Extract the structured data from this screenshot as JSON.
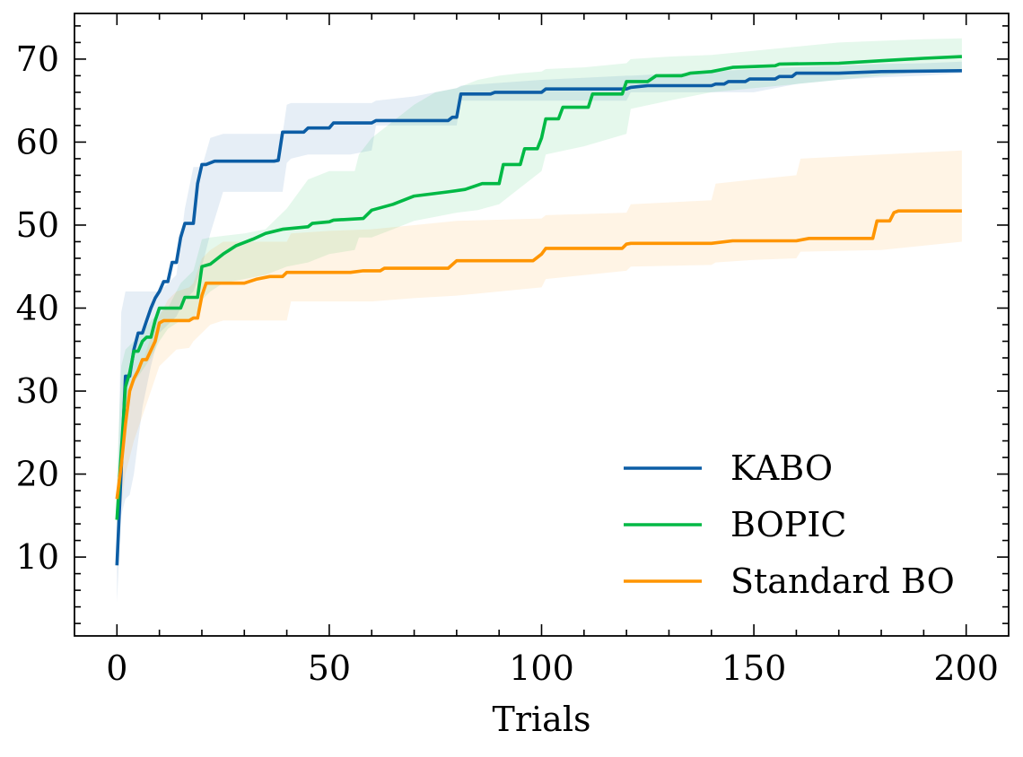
{
  "chart_data": {
    "type": "line",
    "title": "",
    "xlabel": "Trials",
    "ylabel": "",
    "xlim": [
      -10,
      210
    ],
    "ylim": [
      0.5,
      75.5
    ],
    "xticks": [
      0,
      50,
      100,
      150,
      200
    ],
    "yticks": [
      10,
      20,
      30,
      40,
      50,
      60,
      70
    ],
    "xtick_labels": [
      "0",
      "50",
      "100",
      "150",
      "200"
    ],
    "ytick_labels": [
      "10",
      "20",
      "30",
      "40",
      "50",
      "60",
      "70"
    ],
    "grid": false,
    "legend_position": "lower-right",
    "series": [
      {
        "name": "KABO",
        "color": "#0C5DA5",
        "x": [
          0,
          2,
          3,
          4,
          5,
          6,
          7,
          8,
          9,
          10,
          11,
          12,
          13,
          14,
          15,
          16,
          18,
          19,
          20,
          21,
          23,
          25,
          30,
          37,
          38,
          39,
          44,
          45,
          50,
          51,
          60,
          61,
          78,
          79,
          80,
          81,
          88,
          89,
          100,
          101,
          120,
          121,
          125,
          140,
          141,
          143,
          144,
          148,
          149,
          155,
          156,
          159,
          160,
          170,
          180,
          199
        ],
        "y": [
          9,
          31.8,
          31.8,
          35,
          37,
          37,
          38.5,
          40,
          41.2,
          42,
          43.2,
          43.2,
          45.5,
          45.5,
          48.5,
          50.2,
          50.2,
          55,
          57.3,
          57.3,
          57.7,
          57.7,
          57.7,
          57.7,
          57.8,
          61.2,
          61.2,
          61.7,
          61.7,
          62.3,
          62.3,
          62.6,
          62.6,
          63,
          63,
          65.8,
          65.8,
          66,
          66,
          66.4,
          66.4,
          66.6,
          66.8,
          66.8,
          67,
          67,
          67.3,
          67.3,
          67.6,
          67.6,
          67.9,
          67.9,
          68.3,
          68.3,
          68.5,
          68.6
        ]
      },
      {
        "name": "BOPIC",
        "color": "#00B945",
        "x": [
          0,
          2,
          3,
          4,
          5,
          6,
          7,
          8,
          9,
          10,
          11,
          15,
          16,
          19,
          20,
          22,
          25,
          28,
          32,
          35,
          39,
          45,
          46,
          50,
          51,
          58,
          60,
          65,
          70,
          78,
          82,
          86,
          90,
          91,
          95,
          96,
          99,
          100,
          101,
          102,
          104,
          105,
          110,
          111,
          112,
          113,
          119,
          120,
          125,
          127,
          133,
          135,
          140,
          145,
          155,
          156,
          170,
          180,
          190,
          199
        ],
        "y": [
          14.5,
          30.5,
          32.2,
          34.8,
          34.8,
          36,
          36.5,
          36.5,
          38.5,
          40,
          40,
          40,
          41.3,
          41.3,
          45,
          45.3,
          46.5,
          47.5,
          48.3,
          49,
          49.5,
          49.8,
          50.2,
          50.4,
          50.6,
          50.8,
          51.8,
          52.5,
          53.5,
          54,
          54.3,
          55,
          55,
          57.3,
          57.3,
          59.2,
          59.2,
          60.5,
          62.8,
          62.8,
          62.8,
          64.2,
          64.2,
          64.2,
          65.8,
          65.8,
          65.8,
          67.3,
          67.3,
          68,
          68,
          68.3,
          68.5,
          69,
          69.2,
          69.4,
          69.5,
          69.8,
          70.1,
          70.3
        ]
      },
      {
        "name": "Standard BO",
        "color": "#FF9500",
        "x": [
          0,
          1,
          2,
          3,
          4,
          5,
          6,
          7,
          9,
          10,
          11,
          13,
          17,
          18,
          19,
          20,
          21,
          22,
          30,
          33,
          36,
          39,
          40,
          55,
          58,
          62,
          63,
          78,
          80,
          98,
          100,
          101,
          119,
          120,
          121,
          140,
          145,
          160,
          163,
          175,
          178,
          179,
          180,
          182,
          183,
          184,
          199
        ],
        "y": [
          17,
          21,
          26,
          30,
          31.5,
          32.5,
          33.8,
          33.8,
          36,
          38.2,
          38.5,
          38.5,
          38.5,
          38.8,
          38.8,
          41.5,
          43,
          43,
          43,
          43.5,
          43.8,
          43.8,
          44.3,
          44.3,
          44.5,
          44.5,
          44.8,
          44.8,
          45.7,
          45.7,
          46.5,
          47.2,
          47.2,
          47.7,
          47.8,
          47.8,
          48.1,
          48.1,
          48.4,
          48.4,
          48.4,
          50.5,
          50.5,
          50.5,
          51.5,
          51.7,
          51.7
        ]
      }
    ],
    "bands": [
      {
        "series": "KABO",
        "color": "#0C5DA5",
        "x": [
          0,
          1,
          2,
          3,
          4,
          6,
          8,
          10,
          12,
          14,
          16,
          18,
          20,
          22,
          25,
          30,
          35,
          39,
          40,
          41,
          45,
          50,
          55,
          60,
          61,
          70,
          80,
          81,
          100,
          120,
          121,
          140,
          150,
          160,
          170,
          180,
          190,
          199
        ],
        "lower": [
          4.5,
          15,
          17,
          17.5,
          20,
          28,
          33,
          37,
          38,
          39,
          41,
          42,
          45,
          49,
          54,
          54,
          54,
          54,
          57.5,
          58,
          58.5,
          58.5,
          58.5,
          59,
          62,
          62,
          62,
          65,
          65,
          65,
          66,
          66,
          66,
          67,
          67.5,
          67.8,
          68,
          68.3
        ],
        "upper": [
          12,
          39.5,
          42,
          42,
          42,
          42,
          42,
          42,
          43,
          44,
          52,
          57,
          57,
          60.5,
          61,
          61,
          61,
          61,
          64.5,
          64.7,
          64.7,
          64.7,
          64.7,
          64.7,
          65,
          65.5,
          66.5,
          66.8,
          67.5,
          68,
          68,
          68.5,
          68.8,
          69,
          69.2,
          69.4,
          69.5,
          69.7
        ]
      },
      {
        "series": "BOPIC",
        "color": "#00B945",
        "x": [
          0,
          1,
          2,
          4,
          6,
          8,
          10,
          12,
          15,
          18,
          20,
          22,
          25,
          30,
          35,
          40,
          45,
          50,
          56,
          57,
          60,
          65,
          70,
          75,
          80,
          85,
          90,
          95,
          100,
          101,
          110,
          120,
          121,
          130,
          140,
          150,
          160,
          170,
          180,
          190,
          199
        ],
        "lower": [
          10,
          24,
          28,
          31,
          32.5,
          34,
          36,
          37.5,
          38.5,
          38.5,
          41,
          42,
          43,
          43.5,
          44,
          45,
          45.5,
          46.5,
          47,
          48.5,
          48.5,
          49.5,
          50.5,
          51,
          51.5,
          51.8,
          52.5,
          54.5,
          56.5,
          58.5,
          59.5,
          61,
          64,
          65,
          66,
          66.5,
          67,
          67.5,
          68,
          68.5,
          68.5
        ],
        "upper": [
          20,
          33,
          35,
          36,
          37,
          38.5,
          39.5,
          40,
          43,
          44.5,
          48.3,
          48.5,
          48.7,
          49,
          49.5,
          52,
          55.5,
          56.5,
          56.5,
          58.5,
          60.5,
          62.5,
          64.5,
          66,
          66.5,
          67.5,
          68,
          68.3,
          68.5,
          68.8,
          69,
          69.5,
          70,
          70.3,
          70.5,
          71,
          71.5,
          72,
          72.2,
          72.4,
          72.5
        ]
      },
      {
        "series": "Standard BO",
        "color": "#FF9500",
        "x": [
          0,
          1,
          2,
          4,
          6,
          8,
          10,
          12,
          14,
          17,
          18,
          20,
          22,
          25,
          30,
          35,
          40,
          41,
          50,
          60,
          70,
          80,
          100,
          101,
          120,
          121,
          140,
          141,
          150,
          160,
          161,
          180,
          199
        ],
        "lower": [
          14,
          16,
          20,
          24,
          27,
          30,
          33,
          34,
          35,
          35.2,
          36,
          37,
          38,
          38.5,
          38.5,
          38.5,
          38.5,
          40.8,
          40.8,
          40.8,
          41.2,
          41.5,
          42.5,
          43.5,
          44.5,
          45,
          45.2,
          45.5,
          45.8,
          46,
          46.8,
          47,
          48
        ],
        "upper": [
          19,
          25,
          29,
          31.5,
          33.5,
          36.5,
          39,
          41,
          42,
          42.5,
          43,
          46,
          47,
          48,
          48,
          48,
          48,
          49,
          49.3,
          49.5,
          50,
          50.5,
          50.8,
          51.2,
          51.5,
          52.5,
          53,
          55,
          55.5,
          56,
          58,
          58.5,
          59
        ]
      }
    ]
  }
}
